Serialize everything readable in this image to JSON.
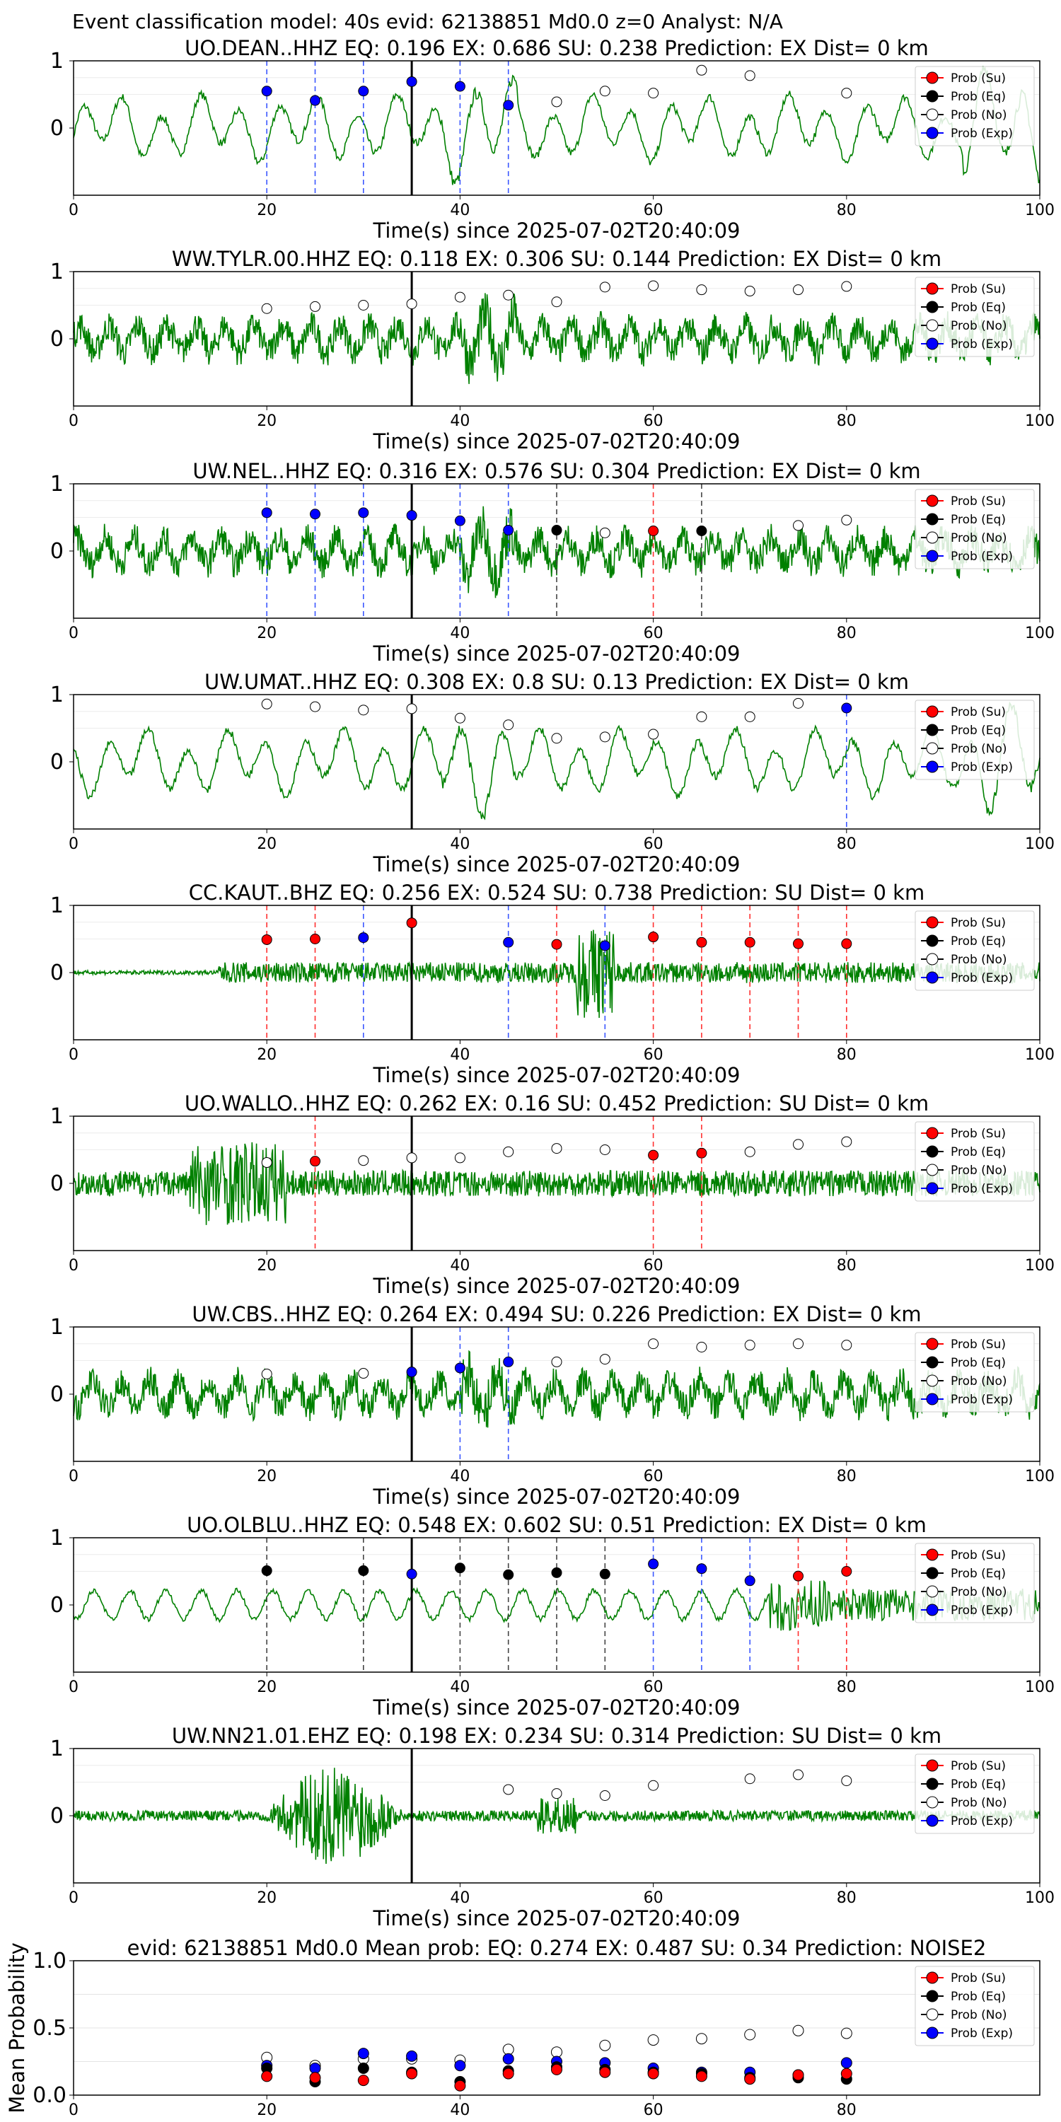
{
  "suptitle": "Event classification model: 40s evid: 62138851 Md0.0 z=0 Analyst: N/A",
  "xlabel": "Time(s) since 2025-07-02T20:40:09",
  "x_ticks": [
    "0",
    "20",
    "40",
    "60",
    "80",
    "100"
  ],
  "legend": [
    "Prob (Su)",
    "Prob (Eq)",
    "Prob (No)",
    "Prob (Exp)"
  ],
  "colors": {
    "su": "#ff0000",
    "eq": "#000000",
    "no": "#ffffff",
    "exp": "#0000ff",
    "wave": "#008000"
  },
  "chart_data": [
    {
      "type": "scatter",
      "station": "UO.DEAN..HHZ",
      "title": "UO.DEAN..HHZ   EQ: 0.196  EX: 0.686  SU: 0.238   Prediction: EX    Dist= 0 km",
      "xlim": [
        0,
        100
      ],
      "ylim": [
        -1,
        1
      ],
      "y_ticks": [
        "1",
        "0"
      ],
      "origin_line": 35,
      "wave_style": "smooth",
      "picks": [
        {
          "x": 20,
          "y": 0.55,
          "cls": "exp"
        },
        {
          "x": 25,
          "y": 0.41,
          "cls": "exp"
        },
        {
          "x": 30,
          "y": 0.55,
          "cls": "exp"
        },
        {
          "x": 35,
          "y": 0.69,
          "cls": "exp"
        },
        {
          "x": 40,
          "y": 0.62,
          "cls": "exp"
        },
        {
          "x": 45,
          "y": 0.34,
          "cls": "exp"
        },
        {
          "x": 50,
          "y": 0.39,
          "cls": "no"
        },
        {
          "x": 55,
          "y": 0.55,
          "cls": "no"
        },
        {
          "x": 60,
          "y": 0.52,
          "cls": "no"
        },
        {
          "x": 65,
          "y": 0.86,
          "cls": "no"
        },
        {
          "x": 70,
          "y": 0.78,
          "cls": "no"
        },
        {
          "x": 80,
          "y": 0.52,
          "cls": "no"
        }
      ]
    },
    {
      "type": "scatter",
      "station": "WW.TYLR.00.HHZ",
      "title": "WW.TYLR.00.HHZ   EQ: 0.118  EX: 0.306  SU: 0.144   Prediction: EX    Dist= 0 km",
      "xlim": [
        0,
        100
      ],
      "ylim": [
        -1,
        1
      ],
      "y_ticks": [
        "1",
        "0"
      ],
      "origin_line": 35,
      "wave_style": "noisy",
      "picks": [
        {
          "x": 20,
          "y": 0.45,
          "cls": "no"
        },
        {
          "x": 25,
          "y": 0.48,
          "cls": "no"
        },
        {
          "x": 30,
          "y": 0.5,
          "cls": "no"
        },
        {
          "x": 35,
          "y": 0.52,
          "cls": "no"
        },
        {
          "x": 40,
          "y": 0.62,
          "cls": "no"
        },
        {
          "x": 45,
          "y": 0.65,
          "cls": "no"
        },
        {
          "x": 50,
          "y": 0.55,
          "cls": "no"
        },
        {
          "x": 55,
          "y": 0.77,
          "cls": "no"
        },
        {
          "x": 60,
          "y": 0.79,
          "cls": "no"
        },
        {
          "x": 65,
          "y": 0.73,
          "cls": "no"
        },
        {
          "x": 70,
          "y": 0.71,
          "cls": "no"
        },
        {
          "x": 75,
          "y": 0.73,
          "cls": "no"
        },
        {
          "x": 80,
          "y": 0.78,
          "cls": "no"
        }
      ]
    },
    {
      "type": "scatter",
      "station": "UW.NEL..HHZ",
      "title": "UW.NEL..HHZ   EQ: 0.316  EX: 0.576  SU: 0.304   Prediction: EX    Dist= 0 km",
      "xlim": [
        0,
        100
      ],
      "ylim": [
        -1,
        1
      ],
      "y_ticks": [
        "1",
        "0"
      ],
      "origin_line": 35,
      "wave_style": "noisy",
      "picks": [
        {
          "x": 20,
          "y": 0.57,
          "cls": "exp"
        },
        {
          "x": 25,
          "y": 0.55,
          "cls": "exp"
        },
        {
          "x": 30,
          "y": 0.57,
          "cls": "exp"
        },
        {
          "x": 35,
          "y": 0.53,
          "cls": "exp"
        },
        {
          "x": 40,
          "y": 0.45,
          "cls": "exp"
        },
        {
          "x": 45,
          "y": 0.31,
          "cls": "exp"
        },
        {
          "x": 50,
          "y": 0.31,
          "cls": "eq"
        },
        {
          "x": 55,
          "y": 0.27,
          "cls": "no"
        },
        {
          "x": 60,
          "y": 0.3,
          "cls": "su"
        },
        {
          "x": 65,
          "y": 0.3,
          "cls": "eq"
        },
        {
          "x": 75,
          "y": 0.38,
          "cls": "no"
        },
        {
          "x": 80,
          "y": 0.46,
          "cls": "no"
        }
      ]
    },
    {
      "type": "scatter",
      "station": "UW.UMAT..HHZ",
      "title": "UW.UMAT..HHZ   EQ: 0.308  EX: 0.8  SU: 0.13   Prediction: EX    Dist= 0 km",
      "xlim": [
        0,
        100
      ],
      "ylim": [
        -1,
        1
      ],
      "y_ticks": [
        "1",
        "0"
      ],
      "origin_line": 35,
      "wave_style": "smooth",
      "picks": [
        {
          "x": 20,
          "y": 0.86,
          "cls": "no"
        },
        {
          "x": 25,
          "y": 0.82,
          "cls": "no"
        },
        {
          "x": 30,
          "y": 0.77,
          "cls": "no"
        },
        {
          "x": 35,
          "y": 0.79,
          "cls": "no"
        },
        {
          "x": 40,
          "y": 0.65,
          "cls": "no"
        },
        {
          "x": 45,
          "y": 0.55,
          "cls": "no"
        },
        {
          "x": 50,
          "y": 0.35,
          "cls": "no"
        },
        {
          "x": 55,
          "y": 0.37,
          "cls": "no"
        },
        {
          "x": 60,
          "y": 0.41,
          "cls": "no"
        },
        {
          "x": 65,
          "y": 0.67,
          "cls": "no"
        },
        {
          "x": 70,
          "y": 0.67,
          "cls": "no"
        },
        {
          "x": 75,
          "y": 0.87,
          "cls": "no"
        },
        {
          "x": 80,
          "y": 0.8,
          "cls": "exp"
        }
      ]
    },
    {
      "type": "scatter",
      "station": "CC.KAUT..BHZ",
      "title": "CC.KAUT..BHZ   EQ: 0.256  EX: 0.524  SU: 0.738   Prediction: SU    Dist= 0 km",
      "xlim": [
        0,
        100
      ],
      "ylim": [
        -1,
        1
      ],
      "y_ticks": [
        "1",
        "0"
      ],
      "origin_line": 35,
      "wave_style": "quiet_burst",
      "picks": [
        {
          "x": 20,
          "y": 0.49,
          "cls": "su"
        },
        {
          "x": 25,
          "y": 0.5,
          "cls": "su"
        },
        {
          "x": 30,
          "y": 0.52,
          "cls": "exp"
        },
        {
          "x": 35,
          "y": 0.74,
          "cls": "su"
        },
        {
          "x": 45,
          "y": 0.45,
          "cls": "exp"
        },
        {
          "x": 50,
          "y": 0.42,
          "cls": "su"
        },
        {
          "x": 55,
          "y": 0.4,
          "cls": "exp"
        },
        {
          "x": 60,
          "y": 0.53,
          "cls": "su"
        },
        {
          "x": 65,
          "y": 0.45,
          "cls": "su"
        },
        {
          "x": 70,
          "y": 0.45,
          "cls": "su"
        },
        {
          "x": 75,
          "y": 0.43,
          "cls": "su"
        },
        {
          "x": 80,
          "y": 0.43,
          "cls": "su"
        }
      ]
    },
    {
      "type": "scatter",
      "station": "UO.WALLO..HHZ",
      "title": "UO.WALLO..HHZ   EQ: 0.262  EX: 0.16  SU: 0.452   Prediction: SU    Dist= 0 km",
      "xlim": [
        0,
        100
      ],
      "ylim": [
        -1,
        1
      ],
      "y_ticks": [
        "1",
        "0"
      ],
      "origin_line": 35,
      "wave_style": "early_burst",
      "picks": [
        {
          "x": 20,
          "y": 0.31,
          "cls": "no"
        },
        {
          "x": 25,
          "y": 0.33,
          "cls": "su"
        },
        {
          "x": 30,
          "y": 0.34,
          "cls": "no"
        },
        {
          "x": 35,
          "y": 0.38,
          "cls": "no"
        },
        {
          "x": 40,
          "y": 0.38,
          "cls": "no"
        },
        {
          "x": 45,
          "y": 0.47,
          "cls": "no"
        },
        {
          "x": 50,
          "y": 0.52,
          "cls": "no"
        },
        {
          "x": 55,
          "y": 0.5,
          "cls": "no"
        },
        {
          "x": 60,
          "y": 0.42,
          "cls": "su"
        },
        {
          "x": 65,
          "y": 0.45,
          "cls": "su"
        },
        {
          "x": 70,
          "y": 0.47,
          "cls": "no"
        },
        {
          "x": 75,
          "y": 0.58,
          "cls": "no"
        },
        {
          "x": 80,
          "y": 0.62,
          "cls": "no"
        }
      ]
    },
    {
      "type": "scatter",
      "station": "UW.CBS..HHZ",
      "title": "UW.CBS..HHZ   EQ: 0.264  EX: 0.494  SU: 0.226   Prediction: EX    Dist= 0 km",
      "xlim": [
        0,
        100
      ],
      "ylim": [
        -1,
        1
      ],
      "y_ticks": [
        "1",
        "0"
      ],
      "origin_line": 35,
      "wave_style": "noisy",
      "picks": [
        {
          "x": 20,
          "y": 0.3,
          "cls": "no"
        },
        {
          "x": 30,
          "y": 0.31,
          "cls": "no"
        },
        {
          "x": 35,
          "y": 0.33,
          "cls": "exp"
        },
        {
          "x": 40,
          "y": 0.39,
          "cls": "exp"
        },
        {
          "x": 45,
          "y": 0.48,
          "cls": "exp"
        },
        {
          "x": 50,
          "y": 0.48,
          "cls": "no"
        },
        {
          "x": 55,
          "y": 0.52,
          "cls": "no"
        },
        {
          "x": 60,
          "y": 0.75,
          "cls": "no"
        },
        {
          "x": 65,
          "y": 0.7,
          "cls": "no"
        },
        {
          "x": 70,
          "y": 0.73,
          "cls": "no"
        },
        {
          "x": 75,
          "y": 0.75,
          "cls": "no"
        },
        {
          "x": 80,
          "y": 0.73,
          "cls": "no"
        }
      ]
    },
    {
      "type": "scatter",
      "station": "UO.OLBLU..HHZ",
      "title": "UO.OLBLU..HHZ   EQ: 0.548  EX: 0.602  SU: 0.51   Prediction: EX    Dist= 0 km",
      "xlim": [
        0,
        100
      ],
      "ylim": [
        -1,
        1
      ],
      "y_ticks": [
        "1",
        "0"
      ],
      "origin_line": 35,
      "wave_style": "smooth_late",
      "picks": [
        {
          "x": 20,
          "y": 0.51,
          "cls": "eq"
        },
        {
          "x": 30,
          "y": 0.51,
          "cls": "eq"
        },
        {
          "x": 35,
          "y": 0.46,
          "cls": "exp"
        },
        {
          "x": 40,
          "y": 0.55,
          "cls": "eq"
        },
        {
          "x": 45,
          "y": 0.45,
          "cls": "eq"
        },
        {
          "x": 50,
          "y": 0.48,
          "cls": "eq"
        },
        {
          "x": 55,
          "y": 0.46,
          "cls": "eq"
        },
        {
          "x": 60,
          "y": 0.61,
          "cls": "exp"
        },
        {
          "x": 65,
          "y": 0.54,
          "cls": "exp"
        },
        {
          "x": 70,
          "y": 0.36,
          "cls": "exp"
        },
        {
          "x": 75,
          "y": 0.43,
          "cls": "su"
        },
        {
          "x": 80,
          "y": 0.5,
          "cls": "su"
        }
      ]
    },
    {
      "type": "scatter",
      "station": "UW.NN21.01.EHZ",
      "title": "UW.NN21.01.EHZ   EQ: 0.198  EX: 0.234  SU: 0.314   Prediction: SU    Dist= 0 km",
      "xlim": [
        0,
        100
      ],
      "ylim": [
        -1,
        1
      ],
      "y_ticks": [
        "1",
        "0"
      ],
      "origin_line": 35,
      "wave_style": "big_burst",
      "picks": [
        {
          "x": 45,
          "y": 0.39,
          "cls": "no"
        },
        {
          "x": 50,
          "y": 0.33,
          "cls": "no"
        },
        {
          "x": 55,
          "y": 0.3,
          "cls": "no"
        },
        {
          "x": 60,
          "y": 0.45,
          "cls": "no"
        },
        {
          "x": 70,
          "y": 0.55,
          "cls": "no"
        },
        {
          "x": 75,
          "y": 0.61,
          "cls": "no"
        },
        {
          "x": 80,
          "y": 0.52,
          "cls": "no"
        }
      ]
    },
    {
      "type": "scatter",
      "station": "mean",
      "title": "evid: 62138851  Md0.0   Mean prob:   EQ: 0.274  EX: 0.487  SU: 0.34   Prediction: NOISE2",
      "ylabel": "Mean Probability",
      "xlim": [
        0,
        100
      ],
      "ylim": [
        0,
        1
      ],
      "y_ticks": [
        "1.0",
        "0.5",
        "0.0"
      ],
      "x_ticks_mean": [
        "0",
        "20",
        "40",
        "60",
        "80"
      ],
      "series": [
        {
          "cls": "no",
          "x": [
            20,
            25,
            30,
            35,
            40,
            45,
            50,
            55,
            60,
            65,
            70,
            75,
            80
          ],
          "y": [
            0.28,
            0.22,
            0.27,
            0.27,
            0.26,
            0.34,
            0.32,
            0.37,
            0.41,
            0.42,
            0.45,
            0.48,
            0.46
          ]
        },
        {
          "cls": "exp",
          "x": [
            20,
            25,
            30,
            35,
            40,
            45,
            50,
            55,
            60,
            65,
            70,
            75,
            80
          ],
          "y": [
            0.22,
            0.2,
            0.31,
            0.29,
            0.22,
            0.27,
            0.25,
            0.24,
            0.2,
            0.17,
            0.17,
            0.15,
            0.24
          ]
        },
        {
          "cls": "eq",
          "x": [
            20,
            25,
            30,
            35,
            40,
            45,
            50,
            55,
            60,
            65,
            70,
            75,
            80
          ],
          "y": [
            0.2,
            0.1,
            0.2,
            0.17,
            0.1,
            0.18,
            0.21,
            0.19,
            0.17,
            0.16,
            0.13,
            0.13,
            0.12
          ]
        },
        {
          "cls": "su",
          "x": [
            20,
            25,
            30,
            35,
            40,
            45,
            50,
            55,
            60,
            65,
            70,
            75,
            80
          ],
          "y": [
            0.14,
            0.13,
            0.11,
            0.16,
            0.07,
            0.16,
            0.19,
            0.17,
            0.16,
            0.14,
            0.12,
            0.15,
            0.16
          ]
        }
      ]
    }
  ]
}
